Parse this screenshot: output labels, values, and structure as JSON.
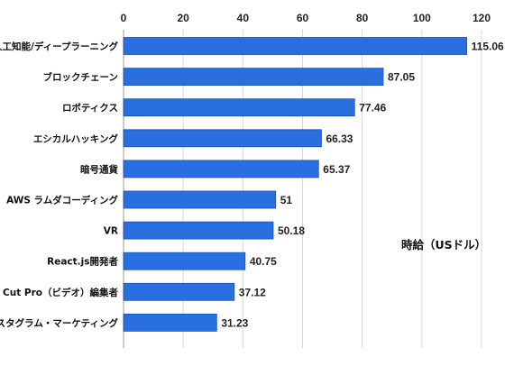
{
  "chart_data": {
    "type": "bar",
    "orientation": "horizontal",
    "categories": [
      "人工知能/ディープラーニング",
      "ブロックチェーン",
      "ロボティクス",
      "エシカルハッキング",
      "暗号通貨",
      "AWS ラムダコーディング",
      "VR",
      "React.js開発者",
      "Cut Pro（ビデオ）編集者",
      "インスタグラム・マーケティング"
    ],
    "values": [
      115.06,
      87.05,
      77.46,
      66.33,
      65.37,
      51,
      50.18,
      40.75,
      37.12,
      31.23
    ],
    "value_labels": [
      "115.06",
      "87.05",
      "77.46",
      "66.33",
      "65.37",
      "51",
      "50.18",
      "40.75",
      "37.12",
      "31.23"
    ],
    "xlim": [
      0,
      120
    ],
    "xticks": [
      "0",
      "20",
      "40",
      "60",
      "80",
      "100",
      "120"
    ],
    "axis_position": "top",
    "grid": true,
    "unit_label": "時給（USドル）",
    "colors": {
      "bar": "#2a6fe0",
      "bar_edge": "#1a4fb0",
      "grid": "#d8d8d8"
    }
  }
}
